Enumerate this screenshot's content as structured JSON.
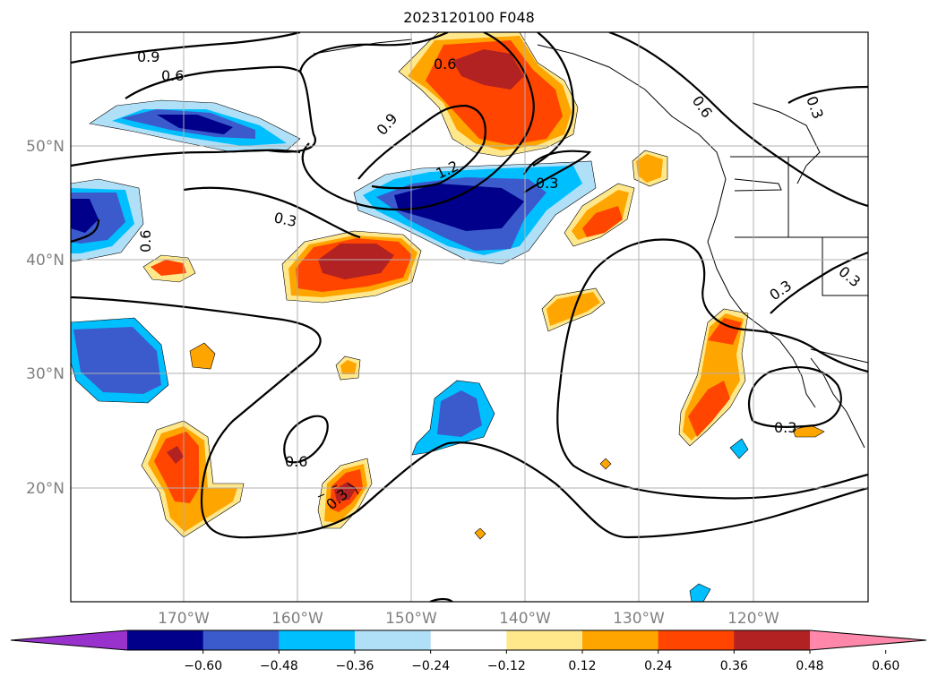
{
  "title": "2023120100 F048",
  "map": {
    "projection": "cylindrical",
    "lon_range": [
      -180,
      -110
    ],
    "lat_range": [
      10,
      60
    ],
    "gridlines": true,
    "latitude_labels": [
      "50°N",
      "40°N",
      "30°N",
      "20°N"
    ],
    "longitude_labels": [
      "170°W",
      "160°W",
      "150°W",
      "140°W",
      "130°W",
      "120°W"
    ],
    "contour_labels": [
      "0.9",
      "0.6",
      "0.6",
      "0.6",
      "0.9",
      "1.2",
      "0.3",
      "0.3",
      "0.6",
      "0.6",
      "0.3",
      "0.3",
      "0.3",
      "0.3",
      "0.3"
    ]
  },
  "colorbar": {
    "ticks": [
      "−0.60",
      "−0.48",
      "−0.36",
      "−0.24",
      "−0.12",
      "0.12",
      "0.24",
      "0.36",
      "0.48",
      "0.60"
    ],
    "colors": [
      "#9932cc",
      "#00008b",
      "#3b5bcc",
      "#00bfff",
      "#b0e0f8",
      "#ffffff",
      "#ffe88c",
      "#ffa500",
      "#ff4500",
      "#b22222",
      "#ff88aa"
    ],
    "extend": "both"
  }
}
